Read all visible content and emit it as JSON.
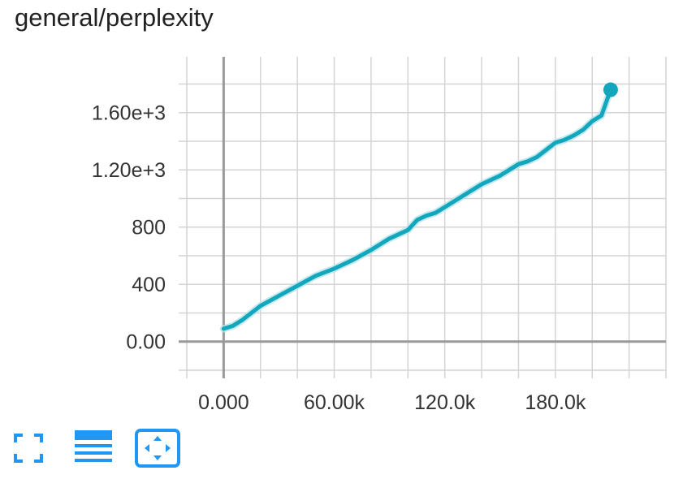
{
  "title": "general/perplexity",
  "toolbar": {
    "items": [
      {
        "icon": "fullscreen-icon"
      },
      {
        "icon": "toggle-log-scale-icon"
      },
      {
        "icon": "fit-domain-icon"
      }
    ]
  },
  "colors": {
    "series": "#12a7bc",
    "series_raw": "#b8e4ea",
    "grid": "#d4d4d4",
    "axis": "#9a9a9a",
    "icon": "#2196f3"
  },
  "chart_data": {
    "type": "line",
    "title": "general/perplexity",
    "xlim": [
      -20000,
      240000
    ],
    "ylim": [
      -200,
      1990
    ],
    "grid": true,
    "x_ticks": [
      0,
      60000,
      120000,
      180000
    ],
    "x_tick_labels": [
      "0.000",
      "60.00k",
      "120.0k",
      "180.0k"
    ],
    "y_ticks": [
      0,
      400,
      800,
      1200,
      1600
    ],
    "y_tick_labels": [
      "0.00",
      "400",
      "800",
      "1.20e+3",
      "1.60e+3"
    ],
    "series": [
      {
        "smoothed": true,
        "x": [
          0,
          5000,
          10000,
          20000,
          30000,
          40000,
          50000,
          60000,
          70000,
          80000,
          90000,
          100000,
          105000,
          110000,
          115000,
          120000,
          130000,
          140000,
          150000,
          160000,
          165000,
          170000,
          180000,
          185000,
          190000,
          195000,
          200000,
          205000,
          210000
        ],
        "y": [
          90,
          110,
          150,
          250,
          320,
          390,
          460,
          510,
          570,
          640,
          720,
          780,
          850,
          880,
          900,
          940,
          1020,
          1100,
          1160,
          1240,
          1260,
          1290,
          1390,
          1410,
          1440,
          1480,
          1540,
          1580,
          1760
        ]
      }
    ],
    "last_point": {
      "x": 210000,
      "y": 1760
    }
  }
}
